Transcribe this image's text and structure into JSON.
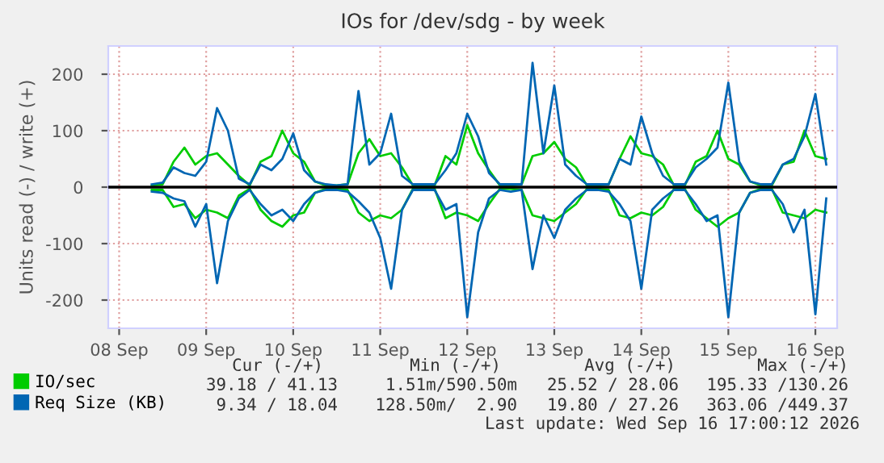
{
  "chart_data": {
    "type": "line",
    "title": "IOs for /dev/sdg - by week",
    "ylabel": "Units read (-) / write (+)",
    "x": [
      "2026-09-08T09:00",
      "2026-09-08T12:00",
      "2026-09-08T15:00",
      "2026-09-08T18:00",
      "2026-09-08T21:00",
      "2026-09-09T00:00",
      "2026-09-09T03:00",
      "2026-09-09T06:00",
      "2026-09-09T09:00",
      "2026-09-09T12:00",
      "2026-09-09T15:00",
      "2026-09-09T18:00",
      "2026-09-09T21:00",
      "2026-09-10T00:00",
      "2026-09-10T03:00",
      "2026-09-10T06:00",
      "2026-09-10T09:00",
      "2026-09-10T12:00",
      "2026-09-10T15:00",
      "2026-09-10T18:00",
      "2026-09-10T21:00",
      "2026-09-11T00:00",
      "2026-09-11T03:00",
      "2026-09-11T06:00",
      "2026-09-11T09:00",
      "2026-09-11T12:00",
      "2026-09-11T15:00",
      "2026-09-11T18:00",
      "2026-09-11T21:00",
      "2026-09-12T00:00",
      "2026-09-12T03:00",
      "2026-09-12T06:00",
      "2026-09-12T09:00",
      "2026-09-12T12:00",
      "2026-09-12T15:00",
      "2026-09-12T18:00",
      "2026-09-12T21:00",
      "2026-09-13T00:00",
      "2026-09-13T03:00",
      "2026-09-13T06:00",
      "2026-09-13T09:00",
      "2026-09-13T12:00",
      "2026-09-13T15:00",
      "2026-09-13T18:00",
      "2026-09-13T21:00",
      "2026-09-14T00:00",
      "2026-09-14T03:00",
      "2026-09-14T06:00",
      "2026-09-14T09:00",
      "2026-09-14T12:00",
      "2026-09-14T15:00",
      "2026-09-14T18:00",
      "2026-09-14T21:00",
      "2026-09-15T00:00",
      "2026-09-15T03:00",
      "2026-09-15T06:00",
      "2026-09-15T09:00",
      "2026-09-15T12:00",
      "2026-09-15T15:00",
      "2026-09-15T18:00",
      "2026-09-15T21:00",
      "2026-09-16T00:00",
      "2026-09-16T03:00"
    ],
    "series": [
      {
        "name": "IO/sec",
        "color": "#00cc00",
        "values": [
          3,
          5,
          45,
          70,
          40,
          55,
          60,
          40,
          20,
          3,
          45,
          55,
          100,
          60,
          45,
          10,
          3,
          3,
          5,
          60,
          85,
          55,
          60,
          35,
          3,
          3,
          3,
          55,
          40,
          110,
          60,
          30,
          3,
          3,
          5,
          55,
          60,
          80,
          50,
          35,
          3,
          3,
          5,
          50,
          90,
          60,
          55,
          40,
          3,
          3,
          45,
          55,
          100,
          50,
          40,
          10,
          3,
          3,
          40,
          45,
          100,
          55,
          50
        ]
      },
      {
        "name": "Req Size (KB)",
        "color": "#0066b3",
        "values": [
          5,
          8,
          35,
          25,
          20,
          45,
          140,
          100,
          15,
          5,
          40,
          30,
          50,
          95,
          30,
          10,
          5,
          3,
          5,
          170,
          40,
          60,
          130,
          20,
          5,
          5,
          5,
          30,
          60,
          130,
          90,
          25,
          5,
          5,
          5,
          220,
          60,
          180,
          40,
          20,
          5,
          5,
          5,
          50,
          40,
          125,
          60,
          20,
          5,
          5,
          35,
          50,
          70,
          185,
          45,
          10,
          5,
          5,
          40,
          50,
          90,
          165,
          40
        ]
      },
      {
        "color": "#00cc00",
        "values": [
          -5,
          -5,
          -35,
          -30,
          -55,
          -40,
          -45,
          -55,
          -15,
          -3,
          -40,
          -60,
          -70,
          -50,
          -45,
          -10,
          -3,
          -3,
          -5,
          -45,
          -60,
          -50,
          -55,
          -40,
          -3,
          -3,
          -3,
          -55,
          -45,
          -50,
          -60,
          -30,
          -3,
          -3,
          -5,
          -50,
          -55,
          -60,
          -45,
          -30,
          -3,
          -3,
          -5,
          -50,
          -55,
          -45,
          -50,
          -35,
          -3,
          -3,
          -40,
          -55,
          -70,
          -55,
          -45,
          -10,
          -3,
          -3,
          -45,
          -50,
          -55,
          -40,
          -45
        ]
      },
      {
        "color": "#0066b3",
        "values": [
          -8,
          -10,
          -20,
          -25,
          -70,
          -30,
          -170,
          -60,
          -20,
          -5,
          -30,
          -50,
          -40,
          -60,
          -30,
          -10,
          -5,
          -5,
          -8,
          -25,
          -45,
          -90,
          -180,
          -40,
          -5,
          -5,
          -5,
          -40,
          -30,
          -230,
          -80,
          -20,
          -5,
          -8,
          -5,
          -145,
          -50,
          -90,
          -40,
          -20,
          -5,
          -5,
          -8,
          -30,
          -60,
          -180,
          -40,
          -20,
          -5,
          -5,
          -30,
          -60,
          -50,
          -230,
          -45,
          -10,
          -5,
          -5,
          -30,
          -80,
          -40,
          -225,
          -20
        ]
      }
    ],
    "xlim": [
      "2026-09-07T21:00",
      "2026-09-16T06:00"
    ],
    "xticks": [
      {
        "value": "2026-09-08",
        "label": "08 Sep"
      },
      {
        "value": "2026-09-09",
        "label": "09 Sep"
      },
      {
        "value": "2026-09-10",
        "label": "10 Sep"
      },
      {
        "value": "2026-09-11",
        "label": "11 Sep"
      },
      {
        "value": "2026-09-12",
        "label": "12 Sep"
      },
      {
        "value": "2026-09-13",
        "label": "13 Sep"
      },
      {
        "value": "2026-09-14",
        "label": "14 Sep"
      },
      {
        "value": "2026-09-15",
        "label": "15 Sep"
      },
      {
        "value": "2026-09-16",
        "label": "16 Sep"
      }
    ],
    "ylim": [
      -250,
      250
    ],
    "yticks": [
      -200,
      -100,
      0,
      100,
      200
    ],
    "ref_lines": [
      {
        "axis": "y",
        "value": 0,
        "color": "#000000"
      }
    ],
    "grid": true,
    "legend": "bottom left",
    "marker": "none",
    "line_style": "solid",
    "annotations": [
      "Cur (-/+)",
      "Min (-/+)",
      "Avg (-/+)",
      "Max (-/+)",
      "39.18 / 41.13",
      "1.51m/590.50m",
      "25.52 / 28.06",
      "195.33 /130.26",
      "9.34 / 18.04",
      "128.50m/  2.90",
      "19.80 / 27.26",
      "363.06 /449.37",
      "Last update: Wed Sep 16 17:00:12 2026"
    ]
  }
}
